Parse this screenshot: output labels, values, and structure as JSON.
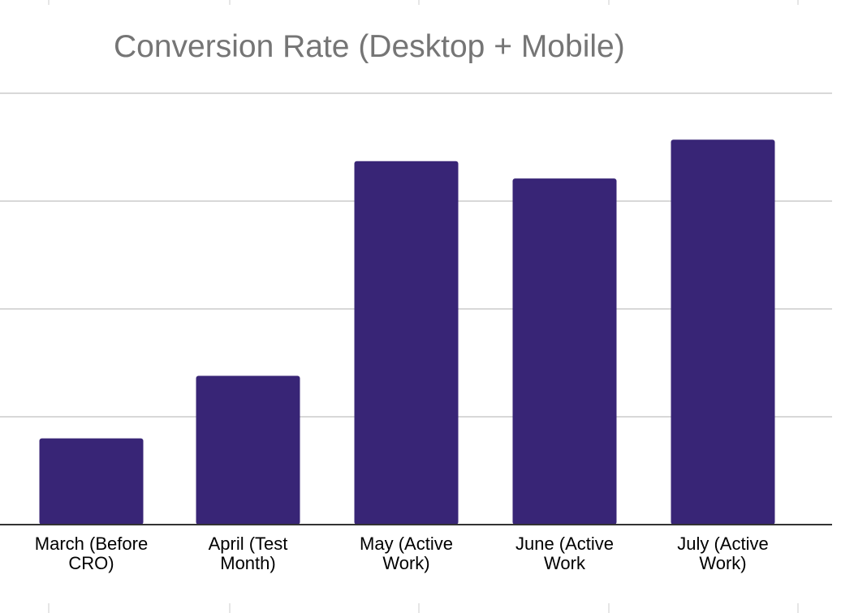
{
  "chart_data": {
    "type": "bar",
    "title": "Conversion Rate (Desktop + Mobile)",
    "categories": [
      [
        "March (Before",
        "CRO)"
      ],
      [
        "April (Test",
        "Month)"
      ],
      [
        "May (Active",
        "Work)"
      ],
      [
        "June (Active",
        "Work"
      ],
      [
        "July (Active",
        "Work)"
      ]
    ],
    "series": [
      {
        "values": [
          0.8,
          1.38,
          3.37,
          3.21,
          3.57
        ]
      }
    ],
    "ylim": [
      0,
      4
    ],
    "gridlines": [
      0,
      1,
      2,
      3,
      4
    ],
    "y_tick_labels_visible": false,
    "grid": true,
    "colors": {
      "bar": "#382576",
      "grid": "#cccccc",
      "baseline": "#333333",
      "title": "#757575",
      "label": "#000000"
    }
  }
}
